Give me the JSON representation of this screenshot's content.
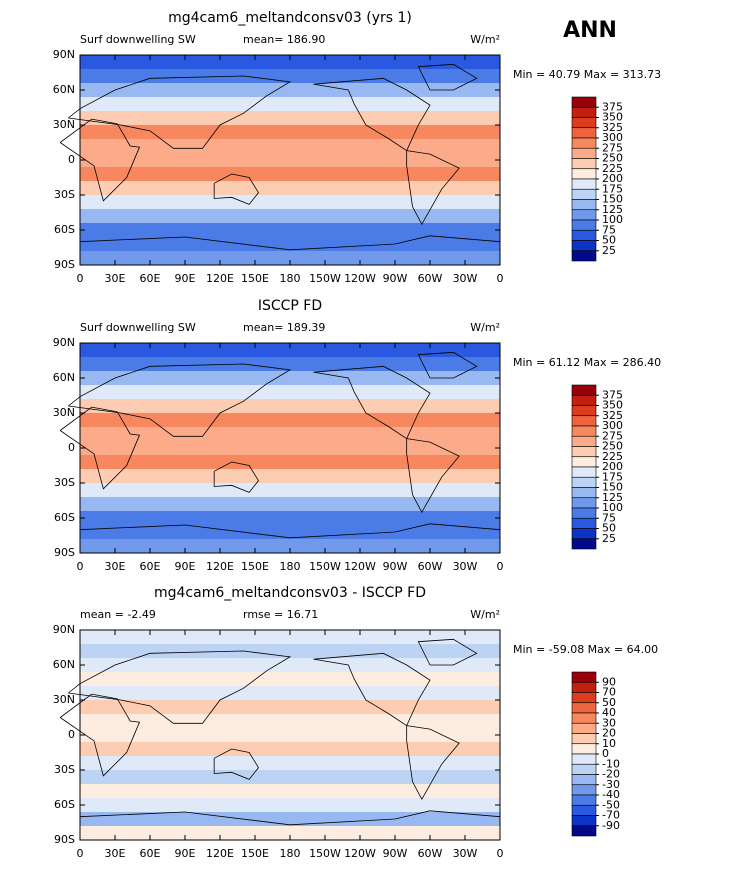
{
  "header": {
    "season": "ANN"
  },
  "lon_labels": [
    "0",
    "30E",
    "60E",
    "90E",
    "120E",
    "150E",
    "180",
    "150W",
    "120W",
    "90W",
    "60W",
    "30W",
    "0"
  ],
  "lat_labels": [
    "90N",
    "60N",
    "30N",
    "0",
    "30S",
    "60S",
    "90S"
  ],
  "colorbar_colors": [
    "#99000d",
    "#c21f10",
    "#dc3d1f",
    "#ee6340",
    "#f7875f",
    "#fbab8a",
    "#fdcdb3",
    "#fdede1",
    "#dfe9f8",
    "#bcd3f4",
    "#97b8f0",
    "#7099eb",
    "#4b7be6",
    "#2859e0",
    "#0c33c6",
    "#020a8a"
  ],
  "panels": [
    {
      "title": "mg4cam6_meltandconsv03 (yrs 1)",
      "left": "Surf downwelling SW",
      "center": "mean= 186.90",
      "units": "W/m²",
      "min_max": "Min =  40.79 Max = 313.73",
      "levels": [
        375,
        350,
        325,
        300,
        275,
        250,
        225,
        200,
        175,
        150,
        125,
        100,
        75,
        50,
        25
      ]
    },
    {
      "title": "ISCCP FD",
      "left": "Surf downwelling SW",
      "center": "mean= 189.39",
      "units": "W/m²",
      "min_max": "Min =  61.12 Max = 286.40",
      "levels": [
        375,
        350,
        325,
        300,
        275,
        250,
        225,
        200,
        175,
        150,
        125,
        100,
        75,
        50,
        25
      ]
    },
    {
      "title": "mg4cam6_meltandconsv03 - ISCCP FD",
      "left": "mean =  -2.49",
      "center": "rmse =  16.71",
      "units": "W/m²",
      "min_max": "Min = -59.08 Max =  64.00",
      "levels": [
        90,
        70,
        50,
        40,
        30,
        20,
        10,
        0,
        -10,
        -20,
        -30,
        -40,
        -50,
        -70,
        -90
      ]
    }
  ]
}
